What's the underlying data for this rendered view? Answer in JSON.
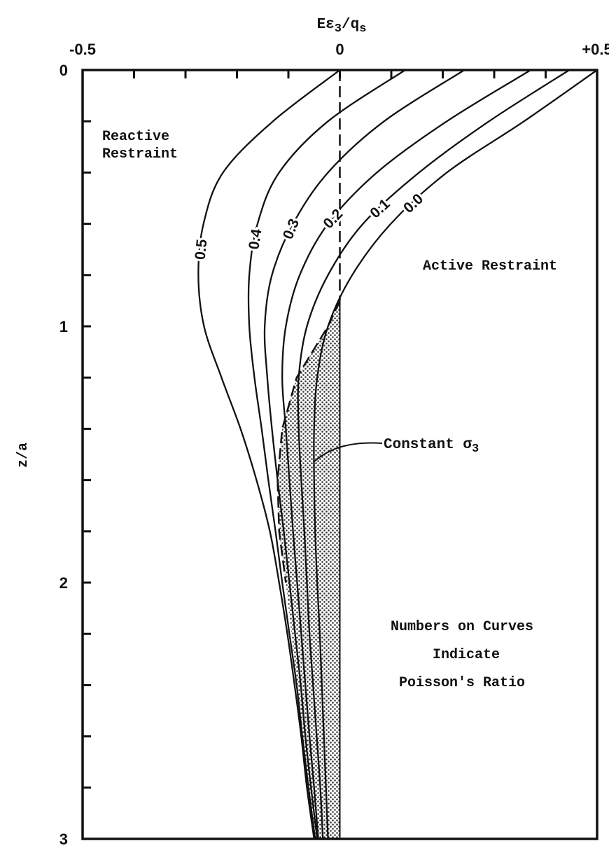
{
  "chart_data": {
    "type": "line",
    "x_label": [
      {
        "text": "Eε",
        "sub": false
      },
      {
        "text": "3",
        "sub": true
      },
      {
        "text": "/q",
        "sub": false
      },
      {
        "text": "s",
        "sub": true
      }
    ],
    "y_label": "z/a",
    "xlim": [
      -0.5,
      0.5
    ],
    "ylim": [
      0,
      3
    ],
    "y_inverted": true,
    "x_axis_position": "top",
    "xticks": [
      -0.5,
      0,
      {
        "value": 0.5,
        "label": "+0.5"
      }
    ],
    "xminorticks": [
      -0.4,
      -0.3,
      -0.2,
      -0.1,
      0.1,
      0.2,
      0.3,
      0.4
    ],
    "yticks": [
      0,
      1,
      2,
      3
    ],
    "yminorticks": [
      0.2,
      0.4,
      0.6,
      0.8,
      1.2,
      1.4,
      1.6,
      1.8,
      2.2,
      2.4,
      2.6,
      2.8
    ],
    "z": [
      0,
      0.2,
      0.4,
      0.6,
      0.8,
      1.0,
      1.2,
      1.4,
      1.6,
      1.8,
      2.0,
      2.2,
      2.4,
      2.6,
      2.8,
      3.0
    ],
    "series": [
      {
        "name": "0.5",
        "color": "#111",
        "values": [
          0.0,
          -0.13,
          -0.227,
          -0.265,
          -0.275,
          -0.264,
          -0.23,
          -0.193,
          -0.162,
          -0.136,
          -0.118,
          -0.102,
          -0.088,
          -0.075,
          -0.064,
          -0.05
        ]
      },
      {
        "name": "0.4",
        "color": "#111",
        "values": [
          0.127,
          -0.023,
          -0.118,
          -0.16,
          -0.176,
          -0.176,
          -0.166,
          -0.152,
          -0.139,
          -0.125,
          -0.112,
          -0.098,
          -0.084,
          -0.073,
          -0.061,
          -0.048
        ]
      },
      {
        "name": "0.3",
        "color": "#111",
        "values": [
          0.242,
          0.086,
          -0.023,
          -0.091,
          -0.132,
          -0.146,
          -0.141,
          -0.132,
          -0.121,
          -0.109,
          -0.098,
          -0.087,
          -0.076,
          -0.067,
          -0.056,
          -0.044
        ]
      },
      {
        "name": "0.2",
        "color": "#111",
        "values": [
          0.371,
          0.208,
          0.072,
          -0.023,
          -0.078,
          -0.105,
          -0.112,
          -0.105,
          -0.098,
          -0.091,
          -0.083,
          -0.075,
          -0.067,
          -0.059,
          -0.05,
          -0.042
        ]
      },
      {
        "name": "0.1",
        "color": "#111",
        "values": [
          0.446,
          0.29,
          0.154,
          0.045,
          -0.023,
          -0.064,
          -0.08,
          -0.08,
          -0.075,
          -0.069,
          -0.064,
          -0.059,
          -0.052,
          -0.045,
          -0.038,
          -0.033
        ]
      },
      {
        "name": "0.0",
        "color": "#111",
        "values": [
          0.5,
          0.358,
          0.208,
          0.099,
          0.024,
          -0.023,
          -0.044,
          -0.05,
          -0.05,
          -0.048,
          -0.044,
          -0.039,
          -0.035,
          -0.031,
          -0.027,
          -0.023
        ]
      }
    ],
    "region": {
      "label": [
        {
          "text": "Constant σ",
          "sub": false
        },
        {
          "text": "3",
          "sub": true
        }
      ],
      "z": [
        0.9,
        1.0,
        1.2,
        1.4,
        1.6,
        1.8,
        2.0,
        2.2,
        2.4,
        2.6,
        2.8,
        3.0
      ],
      "values": [
        0,
        -0.023,
        -0.084,
        -0.112,
        -0.121,
        -0.118,
        -0.105,
        -0.094,
        -0.083,
        -0.072,
        -0.061,
        -0.05
      ],
      "edge_x": 0
    },
    "annotations": {
      "reactive": [
        "Reactive",
        "Restraint"
      ],
      "active": [
        "Active Restraint"
      ],
      "note": [
        "Numbers on Curves",
        " Indicate",
        "Poisson's Ratio"
      ]
    }
  }
}
